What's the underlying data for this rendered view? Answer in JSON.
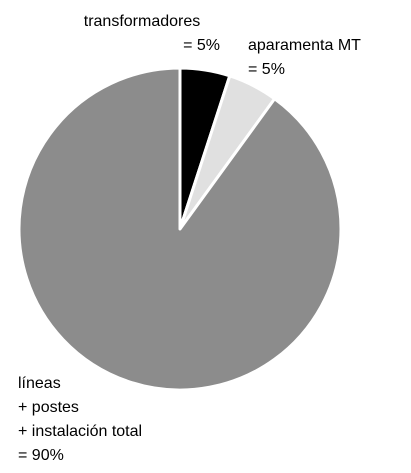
{
  "chart_data": {
    "type": "pie",
    "categories": [
      [
        "transformadores"
      ],
      [
        "aparamenta MT"
      ],
      [
        "líneas",
        "+ postes",
        "+ instalación total"
      ]
    ],
    "values": [
      5,
      5,
      90
    ],
    "value_labels": [
      "= 5%",
      "= 5%",
      "= 90%"
    ],
    "colors": [
      "#000000",
      "#e0e0e0",
      "#8c8c8c"
    ]
  }
}
